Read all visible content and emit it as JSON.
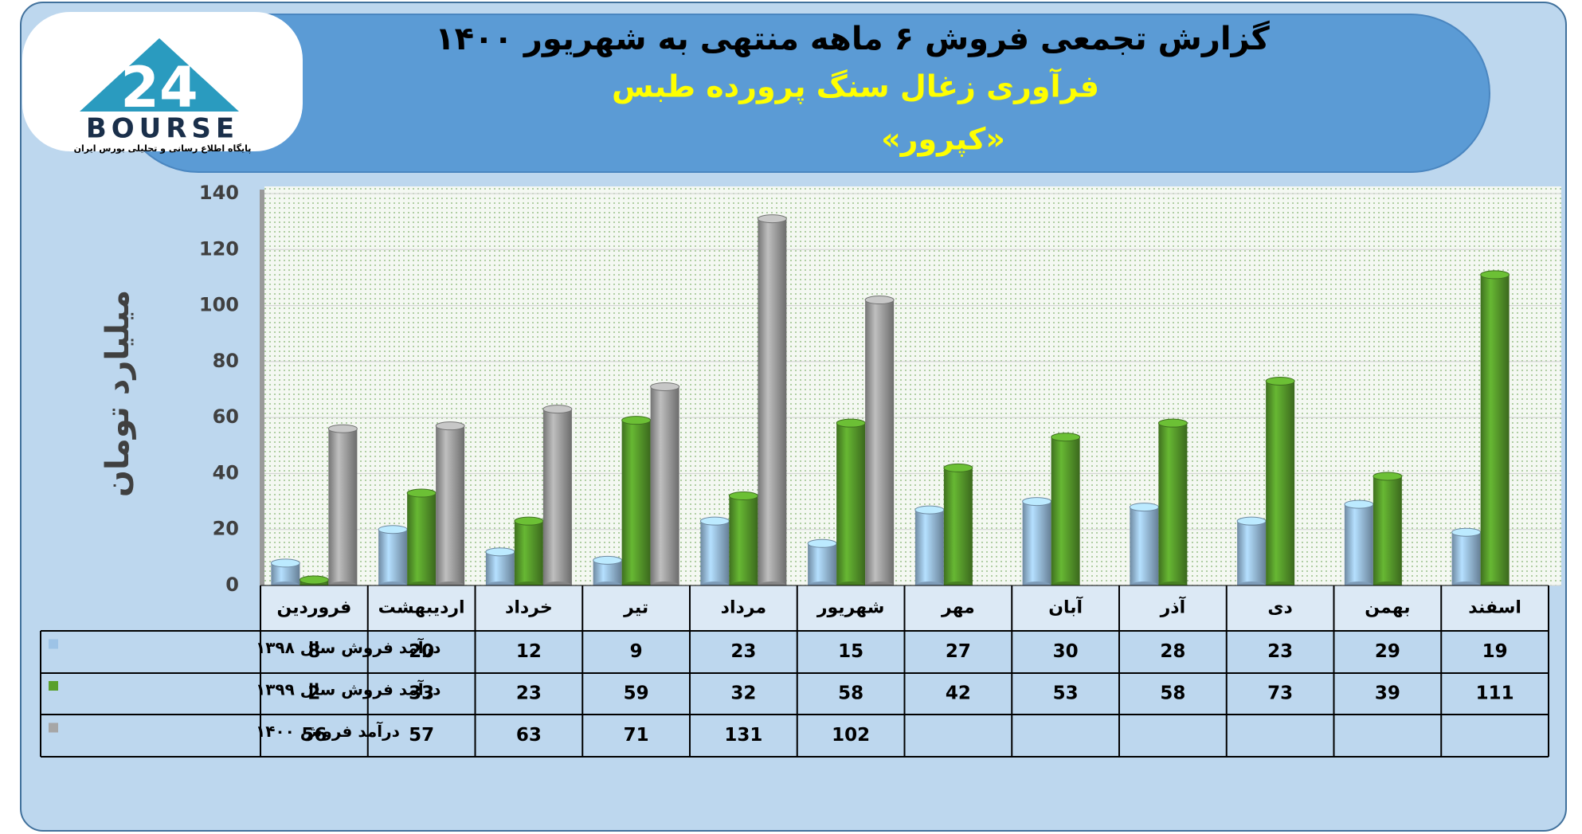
{
  "logo": {
    "name": "BOURSE",
    "tagline": "پایگاه اطلاع رسانی و تحلیلی بورس ایران"
  },
  "chart_data": {
    "type": "bar",
    "title": "گزارش تجمعی فروش ۶ ماهه منتهی به شهریور ۱۴۰۰",
    "subtitle": "فرآوری زغال سنگ پرورده طبس",
    "ticker": "«کپرور»",
    "y_label": "میلیارد تومان",
    "categories": [
      "فروردین",
      "اردیبهشت",
      "خرداد",
      "تیر",
      "مرداد",
      "شهریور",
      "مهر",
      "آبان",
      "آذر",
      "دی",
      "بهمن",
      "اسفند"
    ],
    "series": [
      {
        "name": "درآمد فروش سال ۱۳۹۸",
        "color": "#9dc3e6",
        "values": [
          8,
          20,
          12,
          9,
          23,
          15,
          27,
          30,
          28,
          23,
          29,
          19
        ]
      },
      {
        "name": "درآمد فروش سال ۱۳۹۹",
        "color": "#5aa02c",
        "values": [
          2,
          33,
          23,
          59,
          32,
          58,
          42,
          53,
          58,
          73,
          39,
          111
        ]
      },
      {
        "name": "درآمد فروش ۱۴۰۰",
        "color": "#a6a6a6",
        "values": [
          56,
          57,
          63,
          71,
          131,
          102,
          null,
          null,
          null,
          null,
          null,
          null
        ]
      }
    ],
    "ylim": [
      0,
      140
    ],
    "yticks": [
      0,
      20,
      40,
      60,
      80,
      100,
      120,
      140
    ],
    "grid": true
  }
}
